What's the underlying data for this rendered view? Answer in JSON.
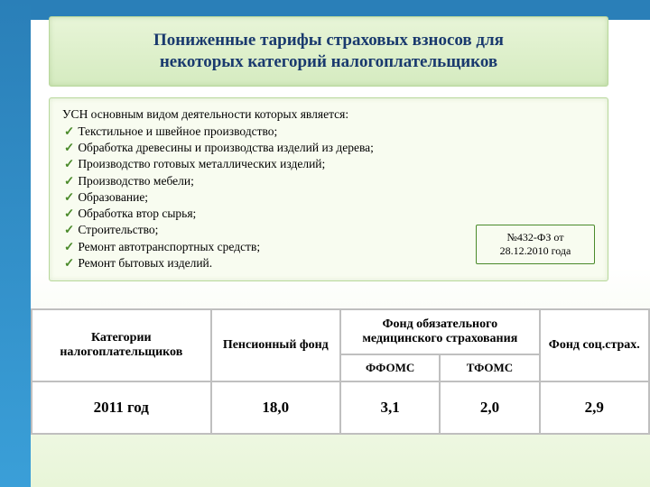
{
  "title": {
    "line1": "Пониженные тарифы страховых взносов для",
    "line2": "некоторых категорий налогоплательщиков"
  },
  "intro": "УСН основным видом деятельности которых является:",
  "items": [
    "Текстильное и швейное производство;",
    "Обработка древесины и производства изделий из дерева;",
    "Производство готовых металлических изделий;",
    "Производство мебели;",
    "Образование;",
    "Обработка втор сырья;",
    "Строительство;",
    "Ремонт автотранспортных средств;",
    "Ремонт бытовых изделий."
  ],
  "law": {
    "num": "№432-ФЗ от",
    "date": "28.12.2010 года"
  },
  "table": {
    "headers": {
      "category": "Категории налогоплательщиков",
      "pension": "Пенсионный фонд",
      "medical": "Фонд обязательного медицинского страхования",
      "ffoms": "ФФОМС",
      "tfoms": "ТФОМС",
      "social": "Фонд соц.страх."
    },
    "row": {
      "year": "2011 год",
      "pension": "18,0",
      "ffoms": "3,1",
      "tfoms": "2,0",
      "social": "2,9"
    }
  },
  "colors": {
    "sidebar": "#2a7fb8",
    "box_bg": "#e8f5d8",
    "box_border": "#b8d89c",
    "title_text": "#1a3a6e",
    "check": "#4a8a2a",
    "table_border": "#bfbfbf"
  }
}
